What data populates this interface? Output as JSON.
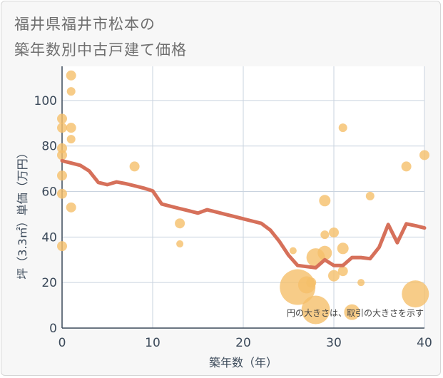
{
  "title_line1": "福井県福井市松本の",
  "title_line2": "築年数別中古戸建て価格",
  "chart_data": {
    "type": "scatter",
    "xlabel": "築年数（年）",
    "ylabel": "坪（3.3㎡）単価（万円）",
    "xlim": [
      0,
      40
    ],
    "ylim": [
      0,
      115
    ],
    "x_ticks": [
      "0",
      "10",
      "20",
      "30",
      "40"
    ],
    "y_ticks": [
      "0",
      "20",
      "40",
      "60",
      "80",
      "100"
    ],
    "x_tick_values": [
      0,
      10,
      20,
      30,
      40
    ],
    "y_tick_values": [
      0,
      20,
      40,
      60,
      80,
      100
    ],
    "grid": true,
    "note": "円の大きさは、取引の大きさを示す",
    "bubble_color": "#f5bf6a",
    "line_color": "#d6705a",
    "points": [
      {
        "x": 0,
        "y": 92,
        "r": 7
      },
      {
        "x": 0,
        "y": 88,
        "r": 7
      },
      {
        "x": 0,
        "y": 79,
        "r": 7
      },
      {
        "x": 0,
        "y": 76,
        "r": 7
      },
      {
        "x": 0,
        "y": 67,
        "r": 7
      },
      {
        "x": 0,
        "y": 59,
        "r": 7
      },
      {
        "x": 0,
        "y": 36,
        "r": 7
      },
      {
        "x": 1,
        "y": 111,
        "r": 7
      },
      {
        "x": 1,
        "y": 104,
        "r": 6
      },
      {
        "x": 1,
        "y": 88,
        "r": 7
      },
      {
        "x": 1,
        "y": 83,
        "r": 6
      },
      {
        "x": 1,
        "y": 53,
        "r": 7
      },
      {
        "x": 8,
        "y": 71,
        "r": 7
      },
      {
        "x": 13,
        "y": 46,
        "r": 7
      },
      {
        "x": 13,
        "y": 37,
        "r": 5
      },
      {
        "x": 25.5,
        "y": 34,
        "r": 5
      },
      {
        "x": 26,
        "y": 18,
        "r": 25
      },
      {
        "x": 27,
        "y": 19,
        "r": 12
      },
      {
        "x": 27.5,
        "y": 20,
        "r": 7
      },
      {
        "x": 28,
        "y": 31,
        "r": 13
      },
      {
        "x": 28,
        "y": 8,
        "r": 20
      },
      {
        "x": 29,
        "y": 56,
        "r": 8
      },
      {
        "x": 29,
        "y": 41,
        "r": 6
      },
      {
        "x": 29,
        "y": 33,
        "r": 10
      },
      {
        "x": 30,
        "y": 42,
        "r": 7
      },
      {
        "x": 30,
        "y": 23,
        "r": 8
      },
      {
        "x": 31,
        "y": 88,
        "r": 6
      },
      {
        "x": 31,
        "y": 35,
        "r": 8
      },
      {
        "x": 31,
        "y": 25,
        "r": 7
      },
      {
        "x": 32,
        "y": 7,
        "r": 11
      },
      {
        "x": 33,
        "y": 20,
        "r": 5
      },
      {
        "x": 34,
        "y": 58,
        "r": 6
      },
      {
        "x": 38,
        "y": 71,
        "r": 7
      },
      {
        "x": 39,
        "y": 15,
        "r": 19
      },
      {
        "x": 40,
        "y": 76,
        "r": 7
      }
    ],
    "trend": [
      [
        0,
        73.5
      ],
      [
        1,
        72.5
      ],
      [
        2,
        71.5
      ],
      [
        3,
        69
      ],
      [
        4,
        64
      ],
      [
        5,
        63
      ],
      [
        6,
        64.2
      ],
      [
        7,
        63.5
      ],
      [
        8,
        62.5
      ],
      [
        9,
        61.5
      ],
      [
        10,
        60.3
      ],
      [
        11,
        54.5
      ],
      [
        12,
        53.5
      ],
      [
        13,
        52.5
      ],
      [
        14,
        51.5
      ],
      [
        15,
        50.5
      ],
      [
        16,
        52
      ],
      [
        17,
        51
      ],
      [
        18,
        50
      ],
      [
        19,
        49
      ],
      [
        20,
        48
      ],
      [
        21,
        47
      ],
      [
        22,
        46
      ],
      [
        23,
        43
      ],
      [
        24,
        38
      ],
      [
        25,
        32
      ],
      [
        26,
        27.5
      ],
      [
        27,
        27
      ],
      [
        28,
        26.5
      ],
      [
        29,
        30
      ],
      [
        30,
        27.5
      ],
      [
        31,
        27.5
      ],
      [
        32,
        31
      ],
      [
        33,
        31
      ],
      [
        34,
        30.5
      ],
      [
        35,
        35.5
      ],
      [
        36,
        45.5
      ],
      [
        37,
        37.5
      ],
      [
        38,
        45.8
      ],
      [
        39,
        45
      ],
      [
        40,
        44
      ]
    ]
  }
}
